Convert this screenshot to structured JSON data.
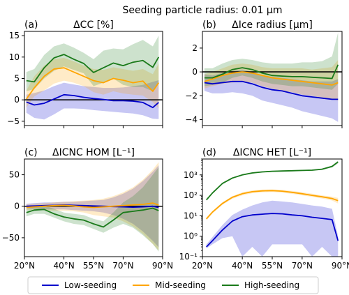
{
  "figure_title": "Seeding particle radius:  0.01 µm",
  "colors": {
    "low": "#0000cc",
    "mid": "#ffa500",
    "high": "#1a7a1a"
  },
  "legend": [
    {
      "key": "low",
      "label": "Low-seeding"
    },
    {
      "key": "mid",
      "label": "Mid-seeding"
    },
    {
      "key": "high",
      "label": "High-seeding"
    }
  ],
  "chart_data": [
    {
      "id": "a",
      "label": "(a)",
      "title": "ΔCC [%]",
      "type": "line",
      "xlim": [
        20,
        90
      ],
      "ylim": [
        -6,
        16
      ],
      "yscale": "linear",
      "xticks": [
        20,
        40,
        55,
        70,
        90
      ],
      "xticklabels": [
        "20°N",
        "40°N",
        "55°N",
        "70°N",
        "90°N"
      ],
      "yticks": [
        -5,
        0,
        5,
        10,
        15
      ],
      "yticklabels": [
        "−5",
        "0",
        "5",
        "10",
        "15"
      ],
      "zero_line": true,
      "x": [
        21,
        25,
        30,
        35,
        40,
        45,
        50,
        55,
        60,
        65,
        70,
        75,
        80,
        85,
        88
      ],
      "series": [
        {
          "key": "low",
          "name": "Low-seeding",
          "values": [
            -0.5,
            -1.2,
            -0.8,
            0.2,
            1.2,
            1.0,
            0.6,
            0.3,
            0.1,
            -0.2,
            -0.2,
            -0.3,
            -0.6,
            -1.8,
            -0.6
          ],
          "lower": [
            -3.0,
            -4.2,
            -4.6,
            -3.4,
            -2.0,
            -2.0,
            -2.1,
            -2.4,
            -2.6,
            -2.8,
            -3.0,
            -3.2,
            -3.6,
            -4.4,
            -4.5
          ],
          "upper": [
            1.2,
            1.6,
            2.2,
            3.2,
            4.0,
            3.6,
            3.2,
            3.0,
            2.8,
            2.8,
            2.9,
            3.2,
            3.5,
            4.2,
            4.6
          ]
        },
        {
          "key": "mid",
          "name": "Mid-seeding",
          "values": [
            0.2,
            2.8,
            5.5,
            7.2,
            7.5,
            6.5,
            5.5,
            4.5,
            4.0,
            5.0,
            4.6,
            4.0,
            4.4,
            2.0,
            4.0
          ],
          "lower": [
            -1.8,
            0.8,
            2.2,
            3.8,
            4.5,
            4.0,
            3.2,
            1.8,
            1.2,
            2.0,
            1.5,
            1.2,
            1.0,
            -0.5,
            -2.0
          ],
          "upper": [
            2.2,
            5.5,
            8.0,
            9.5,
            9.8,
            9.0,
            8.0,
            7.2,
            7.0,
            7.6,
            7.2,
            6.8,
            7.2,
            6.0,
            8.5
          ]
        },
        {
          "key": "high",
          "name": "High-seeding",
          "values": [
            4.5,
            4.2,
            7.5,
            9.8,
            10.6,
            9.5,
            8.5,
            6.4,
            7.5,
            8.6,
            8.0,
            8.8,
            9.2,
            7.6,
            10.0
          ],
          "lower": [
            2.0,
            2.5,
            5.0,
            6.8,
            7.8,
            7.0,
            6.2,
            3.2,
            4.0,
            5.0,
            3.5,
            3.0,
            3.0,
            2.0,
            4.0
          ],
          "upper": [
            6.5,
            7.2,
            10.5,
            12.5,
            13.2,
            12.2,
            11.0,
            9.5,
            11.5,
            12.0,
            11.8,
            13.0,
            14.0,
            12.5,
            15.0
          ]
        }
      ]
    },
    {
      "id": "b",
      "label": "(b)",
      "title": "ΔIce radius [µm]",
      "type": "line",
      "xlim": [
        20,
        90
      ],
      "ylim": [
        -4.5,
        3.4
      ],
      "yscale": "linear",
      "xticks": [
        20,
        40,
        55,
        70,
        90
      ],
      "xticklabels": [
        "20°N",
        "40°N",
        "55°N",
        "70°N",
        "90°N"
      ],
      "yticks": [
        -4,
        -2,
        0,
        2
      ],
      "yticklabels": [
        "−4",
        "−2",
        "0",
        "2"
      ],
      "zero_line": true,
      "x": [
        21,
        25,
        30,
        35,
        40,
        45,
        50,
        55,
        60,
        65,
        70,
        75,
        80,
        85,
        88
      ],
      "series": [
        {
          "key": "low",
          "name": "Low-seeding",
          "values": [
            -0.9,
            -1.0,
            -0.9,
            -0.8,
            -0.8,
            -1.0,
            -1.3,
            -1.5,
            -1.6,
            -1.8,
            -2.0,
            -2.1,
            -2.2,
            -2.3,
            -2.3
          ],
          "lower": [
            -1.6,
            -1.8,
            -1.8,
            -1.7,
            -1.8,
            -2.0,
            -2.4,
            -2.6,
            -2.8,
            -3.0,
            -3.3,
            -3.5,
            -3.7,
            -3.9,
            -4.2
          ],
          "upper": [
            -0.2,
            -0.3,
            -0.1,
            0.1,
            0.2,
            0.0,
            -0.3,
            -0.4,
            -0.5,
            -0.6,
            -0.7,
            -0.8,
            -0.8,
            -0.8,
            -0.6
          ]
        },
        {
          "key": "mid",
          "name": "Mid-seeding",
          "values": [
            -0.8,
            -0.6,
            -0.3,
            -0.1,
            0.0,
            -0.1,
            -0.3,
            -0.5,
            -0.6,
            -0.7,
            -0.8,
            -0.9,
            -1.0,
            -1.1,
            -0.9
          ],
          "lower": [
            -1.4,
            -1.2,
            -1.0,
            -0.9,
            -0.8,
            -0.9,
            -1.2,
            -1.4,
            -1.6,
            -1.7,
            -1.9,
            -2.0,
            -2.2,
            -2.3,
            -2.4
          ],
          "upper": [
            -0.2,
            0.0,
            0.3,
            0.6,
            0.7,
            0.6,
            0.4,
            0.3,
            0.3,
            0.3,
            0.3,
            0.2,
            0.3,
            0.4,
            1.0
          ]
        },
        {
          "key": "high",
          "name": "High-seeding",
          "values": [
            -0.5,
            -0.5,
            -0.2,
            0.2,
            0.35,
            0.2,
            -0.1,
            -0.3,
            -0.35,
            -0.4,
            -0.4,
            -0.45,
            -0.5,
            -0.55,
            0.6
          ],
          "lower": [
            -1.2,
            -1.1,
            -0.9,
            -0.5,
            -0.3,
            -0.5,
            -0.8,
            -1.0,
            -1.1,
            -1.2,
            -1.2,
            -1.3,
            -1.4,
            -1.5,
            -1.0
          ],
          "upper": [
            0.3,
            0.3,
            0.7,
            1.0,
            1.1,
            1.0,
            0.8,
            0.7,
            0.7,
            0.7,
            0.8,
            0.8,
            0.9,
            1.3,
            3.3
          ]
        }
      ]
    },
    {
      "id": "c",
      "label": "(c)",
      "title": "ΔICNC HOM [L⁻¹]",
      "type": "line",
      "xlim": [
        20,
        90
      ],
      "ylim": [
        -80,
        75
      ],
      "yscale": "linear",
      "xticks": [
        20,
        40,
        55,
        70,
        90
      ],
      "xticklabels": [
        "20°N",
        "40°N",
        "55°N",
        "70°N",
        "90°N"
      ],
      "yticks": [
        -50,
        0,
        50
      ],
      "yticklabels": [
        "−50",
        "0",
        "50"
      ],
      "zero_line": true,
      "x": [
        21,
        25,
        30,
        35,
        40,
        45,
        50,
        55,
        60,
        65,
        70,
        75,
        80,
        85,
        88
      ],
      "series": [
        {
          "key": "low",
          "name": "Low-seeding",
          "values": [
            0.0,
            0.5,
            1.0,
            1.5,
            2.0,
            1.5,
            1.0,
            0.5,
            0.0,
            -0.5,
            -1.0,
            -1.5,
            -1.0,
            0.0,
            -2.0
          ],
          "lower": [
            -4,
            -4,
            -5,
            -5,
            -5,
            -6,
            -7,
            -8,
            -10,
            -14,
            -20,
            -28,
            -40,
            -55,
            -65
          ],
          "upper": [
            4,
            5,
            6,
            6,
            7,
            7,
            8,
            9,
            10,
            14,
            20,
            28,
            40,
            55,
            65
          ]
        },
        {
          "key": "mid",
          "name": "Mid-seeding",
          "values": [
            -2.0,
            -1.0,
            0.0,
            1.0,
            1.5,
            0.5,
            -1.0,
            -2.0,
            -1.0,
            0.0,
            1.0,
            2.0,
            3.0,
            5.0,
            2.0
          ],
          "lower": [
            -6,
            -6,
            -6,
            -7,
            -7,
            -8,
            -10,
            -14,
            -16,
            -18,
            -24,
            -32,
            -44,
            -60,
            -70
          ],
          "upper": [
            3,
            4,
            5,
            6,
            7,
            8,
            9,
            10,
            12,
            16,
            22,
            30,
            42,
            58,
            70
          ]
        },
        {
          "key": "high",
          "name": "High-seeding",
          "values": [
            -10.0,
            -6.0,
            -5.0,
            -12.0,
            -17.0,
            -20.0,
            -22.0,
            -28.0,
            -33.0,
            -22.0,
            -10.0,
            -8.0,
            -6.0,
            -3.0,
            -7.0
          ],
          "lower": [
            -16,
            -12,
            -12,
            -18,
            -24,
            -28,
            -30,
            -36,
            -42,
            -34,
            -28,
            -34,
            -46,
            -60,
            -72
          ],
          "upper": [
            -4,
            -1,
            1,
            -4,
            -10,
            -12,
            -14,
            -20,
            -24,
            -10,
            6,
            16,
            30,
            50,
            62
          ]
        }
      ]
    },
    {
      "id": "d",
      "label": "(d)",
      "title": "ΔICNC HET [L⁻¹]",
      "type": "line",
      "xlim": [
        20,
        90
      ],
      "ylim": [
        0.1,
        6000
      ],
      "yscale": "log",
      "xticks": [
        20,
        40,
        55,
        70,
        90
      ],
      "xticklabels": [
        "20°N",
        "40°N",
        "55°N",
        "70°N",
        "90°N"
      ],
      "yticks": [
        0.1,
        1,
        10,
        100,
        1000
      ],
      "yticklabels": [
        "10⁻¹",
        "10⁰",
        "10¹",
        "10²",
        "10³"
      ],
      "zero_line": false,
      "x": [
        22,
        25,
        30,
        35,
        40,
        45,
        50,
        55,
        60,
        65,
        70,
        75,
        80,
        85,
        88
      ],
      "series": [
        {
          "key": "low",
          "name": "Low-seeding",
          "values": [
            0.3,
            0.6,
            2.0,
            5.5,
            9.0,
            11.0,
            12.0,
            13.0,
            12.5,
            11.0,
            10.0,
            8.5,
            7.5,
            6.5,
            0.6
          ],
          "lower": [
            0.25,
            0.4,
            0.8,
            1.0,
            0.1,
            0.3,
            0.1,
            0.4,
            0.4,
            0.4,
            0.4,
            0.1,
            0.3,
            0.1,
            0.1
          ],
          "upper": [
            0.4,
            0.9,
            3.5,
            11.0,
            20.0,
            32.0,
            45.0,
            55.0,
            50.0,
            45.0,
            38.0,
            32.0,
            28.0,
            22.0,
            1.0
          ]
        },
        {
          "key": "mid",
          "name": "Mid-seeding",
          "values": [
            7.0,
            15.0,
            40.0,
            80.0,
            120.0,
            150.0,
            165.0,
            170.0,
            160.0,
            140.0,
            120.0,
            100.0,
            85.0,
            70.0,
            55.0
          ],
          "lower": [
            6.0,
            13.0,
            34.0,
            68.0,
            100.0,
            128.0,
            140.0,
            145.0,
            135.0,
            118.0,
            100.0,
            84.0,
            70.0,
            56.0,
            40.0
          ],
          "upper": [
            8.0,
            17.0,
            46.0,
            92.0,
            140.0,
            175.0,
            190.0,
            195.0,
            185.0,
            165.0,
            142.0,
            120.0,
            100.0,
            86.0,
            75.0
          ]
        },
        {
          "key": "high",
          "name": "High-seeding",
          "values": [
            60.0,
            130.0,
            380.0,
            700.0,
            1000.0,
            1250.0,
            1400.0,
            1500.0,
            1550.0,
            1600.0,
            1650.0,
            1700.0,
            1900.0,
            2600.0,
            4300.0
          ],
          "lower": [
            55.0,
            120.0,
            350.0,
            650.0,
            920.0,
            1150.0,
            1300.0,
            1400.0,
            1450.0,
            1500.0,
            1540.0,
            1580.0,
            1750.0,
            2300.0,
            3600.0
          ],
          "upper": [
            65.0,
            140.0,
            410.0,
            760.0,
            1080.0,
            1350.0,
            1500.0,
            1600.0,
            1650.0,
            1700.0,
            1760.0,
            1820.0,
            2050.0,
            2900.0,
            5000.0
          ]
        }
      ]
    }
  ]
}
